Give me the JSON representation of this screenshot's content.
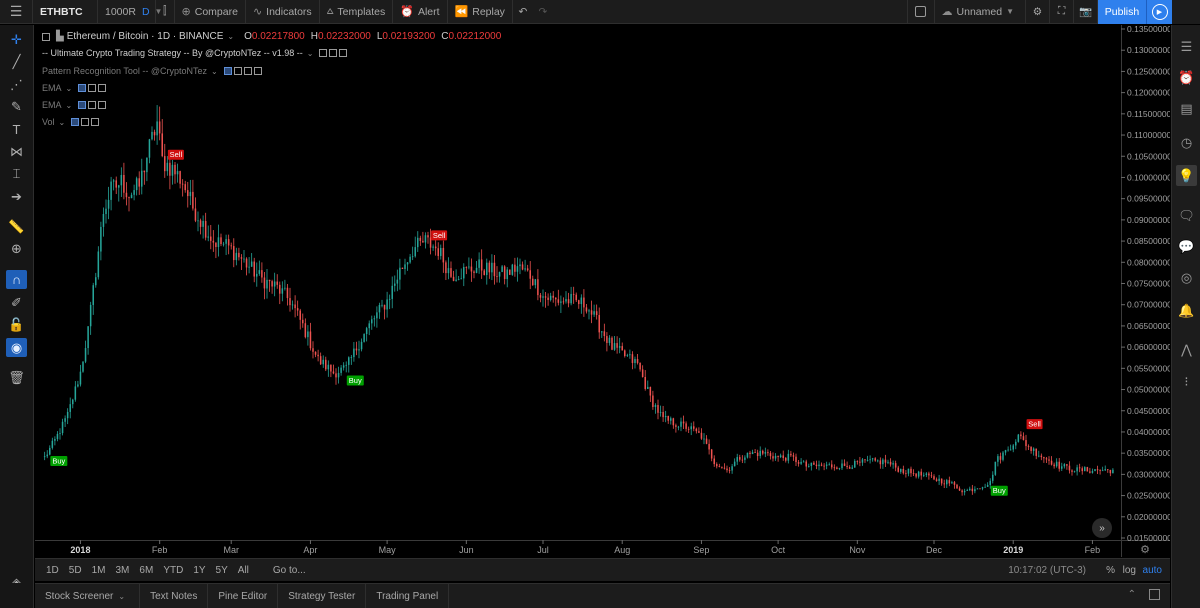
{
  "toolbar": {
    "symbol": "ETHBTC",
    "interval_value": "1000R",
    "interval_type": "D",
    "compare": "Compare",
    "indicators": "Indicators",
    "templates": "Templates",
    "alert": "Alert",
    "replay": "Replay",
    "layout_name": "Unnamed",
    "publish": "Publish"
  },
  "legend": {
    "title": "Ethereum / Bitcoin · 1D · BINANCE",
    "o_label": "O",
    "o_value": "0.02217800",
    "h_label": "H",
    "h_value": "0.02232000",
    "l_label": "L",
    "l_value": "0.02193200",
    "c_label": "C",
    "c_value": "0.02212000",
    "strategy": "-- Ultimate Crypto Trading Strategy -- By @CryptoNTez -- v1.98 --",
    "pattern": "Pattern Recognition Tool -- @CryptoNTez",
    "ema1": "EMA",
    "ema2": "EMA",
    "vol": "Vol"
  },
  "chart_data": {
    "type": "candlestick",
    "title": "Ethereum / Bitcoin · 1D · BINANCE",
    "x_ticks": [
      "2018",
      "Feb",
      "Mar",
      "Apr",
      "May",
      "Jun",
      "Jul",
      "Aug",
      "Sep",
      "Oct",
      "Nov",
      "Dec",
      "2019",
      "Feb"
    ],
    "y_ticks": [
      "0.13500000",
      "0.13000000",
      "0.12500000",
      "0.12000000",
      "0.11500000",
      "0.11000000",
      "0.10500000",
      "0.10000000",
      "0.09500000",
      "0.09000000",
      "0.08500000",
      "0.08000000",
      "0.07500000",
      "0.07000000",
      "0.06500000",
      "0.06000000",
      "0.05500000",
      "0.05000000",
      "0.04500000",
      "0.04000000",
      "0.03500000",
      "0.03000000",
      "0.02500000",
      "0.02000000",
      "0.01500000"
    ],
    "ylim": [
      0.015,
      0.135
    ],
    "close_path": [
      [
        "2017-12-18",
        0.034
      ],
      [
        "2017-12-22",
        0.038
      ],
      [
        "2017-12-27",
        0.044
      ],
      [
        "2018-01-01",
        0.054
      ],
      [
        "2018-01-04",
        0.064
      ],
      [
        "2018-01-07",
        0.078
      ],
      [
        "2018-01-10",
        0.092
      ],
      [
        "2018-01-13",
        0.097
      ],
      [
        "2018-01-17",
        0.099
      ],
      [
        "2018-01-20",
        0.096
      ],
      [
        "2018-01-24",
        0.098
      ],
      [
        "2018-01-27",
        0.105
      ],
      [
        "2018-01-31",
        0.113
      ],
      [
        "2018-02-02",
        0.104
      ],
      [
        "2018-02-06",
        0.102
      ],
      [
        "2018-02-10",
        0.099
      ],
      [
        "2018-02-14",
        0.093
      ],
      [
        "2018-02-18",
        0.089
      ],
      [
        "2018-02-22",
        0.085
      ],
      [
        "2018-02-27",
        0.084
      ],
      [
        "2018-03-03",
        0.082
      ],
      [
        "2018-03-08",
        0.079
      ],
      [
        "2018-03-13",
        0.076
      ],
      [
        "2018-03-19",
        0.074
      ],
      [
        "2018-03-24",
        0.071
      ],
      [
        "2018-03-29",
        0.065
      ],
      [
        "2018-04-04",
        0.057
      ],
      [
        "2018-04-10",
        0.054
      ],
      [
        "2018-04-15",
        0.055
      ],
      [
        "2018-04-20",
        0.061
      ],
      [
        "2018-04-25",
        0.066
      ],
      [
        "2018-05-01",
        0.071
      ],
      [
        "2018-05-06",
        0.078
      ],
      [
        "2018-05-11",
        0.083
      ],
      [
        "2018-05-16",
        0.085
      ],
      [
        "2018-05-21",
        0.083
      ],
      [
        "2018-05-26",
        0.077
      ],
      [
        "2018-06-01",
        0.078
      ],
      [
        "2018-06-06",
        0.079
      ],
      [
        "2018-06-11",
        0.078
      ],
      [
        "2018-06-16",
        0.077
      ],
      [
        "2018-06-21",
        0.079
      ],
      [
        "2018-06-26",
        0.077
      ],
      [
        "2018-07-01",
        0.072
      ],
      [
        "2018-07-06",
        0.071
      ],
      [
        "2018-07-12",
        0.071
      ],
      [
        "2018-07-18",
        0.07
      ],
      [
        "2018-07-23",
        0.065
      ],
      [
        "2018-07-28",
        0.06
      ],
      [
        "2018-08-02",
        0.058
      ],
      [
        "2018-08-07",
        0.056
      ],
      [
        "2018-08-12",
        0.048
      ],
      [
        "2018-08-17",
        0.043
      ],
      [
        "2018-08-22",
        0.042
      ],
      [
        "2018-08-27",
        0.041
      ],
      [
        "2018-09-01",
        0.039
      ],
      [
        "2018-09-06",
        0.033
      ],
      [
        "2018-09-11",
        0.031
      ],
      [
        "2018-09-16",
        0.034
      ],
      [
        "2018-09-21",
        0.035
      ],
      [
        "2018-09-26",
        0.035
      ],
      [
        "2018-10-01",
        0.034
      ],
      [
        "2018-10-06",
        0.034
      ],
      [
        "2018-10-12",
        0.032
      ],
      [
        "2018-10-20",
        0.032
      ],
      [
        "2018-10-28",
        0.032
      ],
      [
        "2018-11-05",
        0.033
      ],
      [
        "2018-11-12",
        0.033
      ],
      [
        "2018-11-18",
        0.031
      ],
      [
        "2018-11-25",
        0.03
      ],
      [
        "2018-12-01",
        0.029
      ],
      [
        "2018-12-07",
        0.028
      ],
      [
        "2018-12-13",
        0.026
      ],
      [
        "2018-12-18",
        0.027
      ],
      [
        "2018-12-23",
        0.028
      ],
      [
        "2018-12-25",
        0.033
      ],
      [
        "2018-12-30",
        0.036
      ],
      [
        "2019-01-03",
        0.039
      ],
      [
        "2019-01-08",
        0.036
      ],
      [
        "2019-01-13",
        0.034
      ],
      [
        "2019-01-19",
        0.032
      ],
      [
        "2019-01-26",
        0.031
      ],
      [
        "2019-02-03",
        0.031
      ],
      [
        "2019-02-09",
        0.031
      ]
    ],
    "signals": [
      {
        "date": "2017-12-21",
        "label": "Buy",
        "price": 0.0355
      },
      {
        "date": "2018-02-05",
        "label": "Sell",
        "price": 0.103
      },
      {
        "date": "2018-04-16",
        "label": "Buy",
        "price": 0.0545
      },
      {
        "date": "2018-05-19",
        "label": "Sell",
        "price": 0.084
      },
      {
        "date": "2018-12-24",
        "label": "Buy",
        "price": 0.0285
      },
      {
        "date": "2019-01-07",
        "label": "Sell",
        "price": 0.0395
      }
    ],
    "colors": {
      "up": "#26a69a",
      "down": "#ef5350",
      "buy": "#00a000",
      "sell": "#d01010"
    }
  },
  "ranges": [
    "1D",
    "5D",
    "1M",
    "3M",
    "6M",
    "YTD",
    "1Y",
    "5Y",
    "All"
  ],
  "goto": "Go to...",
  "clock": "10:17:02 (UTC-3)",
  "scale": {
    "percent": "%",
    "log": "log",
    "auto": "auto"
  },
  "bottom_tabs": [
    "Stock Screener",
    "Text Notes",
    "Pine Editor",
    "Strategy Tester",
    "Trading Panel"
  ],
  "icons": {
    "menu": "hamburger-icon",
    "compare": "plus-circle-icon",
    "indicators": "indicators-icon",
    "templates": "templates-icon",
    "alert": "alarm-clock-icon",
    "replay": "replay-icon"
  }
}
